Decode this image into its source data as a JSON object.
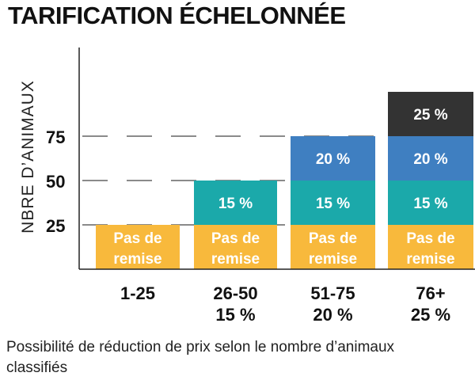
{
  "chart_data": {
    "type": "bar",
    "stacked": true,
    "title": "TARIFICATION ÉCHELONNÉE",
    "ylabel": "NBRE D’ANIMAUX",
    "xlabel": "",
    "yticks": [
      25,
      50,
      75
    ],
    "ylim": [
      0,
      100
    ],
    "grid": "dashed",
    "categories": [
      {
        "label": "1-25",
        "sublabel": ""
      },
      {
        "label": "26-50",
        "sublabel": "15 %"
      },
      {
        "label": "51-75",
        "sublabel": "20 %"
      },
      {
        "label": "76+",
        "sublabel": "25 %"
      }
    ],
    "series": [
      {
        "label_line1": "Pas de",
        "label_line2": "remise",
        "color": "#f8b93c",
        "text_color": "#ffffff",
        "values": [
          25,
          25,
          25,
          25
        ]
      },
      {
        "label": "15 %",
        "color": "#1ba9aa",
        "text_color": "#ffffff",
        "values": [
          0,
          25,
          25,
          25
        ]
      },
      {
        "label": "20 %",
        "color": "#3f7fc1",
        "text_color": "#ffffff",
        "values": [
          0,
          0,
          25,
          25
        ]
      },
      {
        "label": "25 %",
        "color": "#333333",
        "text_color": "#ffffff",
        "values": [
          0,
          0,
          0,
          25
        ]
      }
    ]
  },
  "caption": "Possibilité de réduction de prix selon le nombre d’animaux classifiés"
}
